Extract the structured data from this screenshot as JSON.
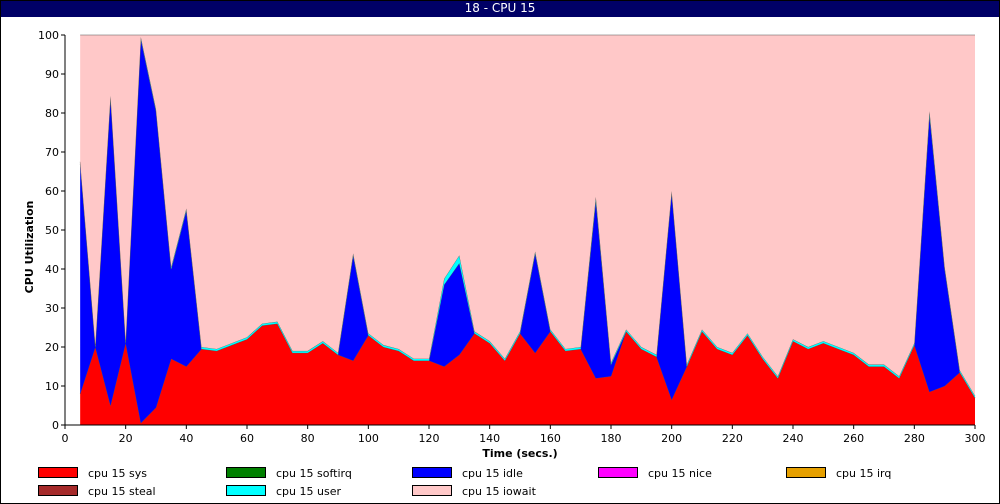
{
  "window_title": "18 - CPU 15",
  "chart_data": {
    "type": "area",
    "stacked": true,
    "xlabel": "Time (secs.)",
    "ylabel": "CPU Utilization",
    "xlim": [
      0,
      300
    ],
    "ylim": [
      0,
      100
    ],
    "x_ticks": [
      0,
      20,
      40,
      60,
      80,
      100,
      120,
      140,
      160,
      180,
      200,
      220,
      240,
      260,
      280,
      300
    ],
    "y_ticks": [
      0,
      10,
      20,
      30,
      40,
      50,
      60,
      70,
      80,
      90,
      100
    ],
    "grid": false,
    "legend_position": "bottom",
    "x": [
      5,
      10,
      15,
      20,
      25,
      30,
      35,
      40,
      45,
      50,
      55,
      60,
      65,
      70,
      75,
      80,
      85,
      90,
      95,
      100,
      105,
      110,
      115,
      120,
      125,
      130,
      135,
      140,
      145,
      150,
      155,
      160,
      165,
      170,
      175,
      180,
      185,
      190,
      195,
      200,
      205,
      210,
      215,
      220,
      225,
      230,
      235,
      240,
      245,
      250,
      255,
      260,
      265,
      270,
      275,
      280,
      285,
      290,
      295,
      300
    ],
    "series": [
      {
        "name": "cpu 15 sys",
        "color": "#ff0000",
        "values": [
          8,
          20,
          5,
          21,
          0.5,
          4.5,
          17,
          15,
          19.5,
          19,
          20.5,
          22,
          25.5,
          26,
          18.5,
          18.5,
          21,
          18,
          16.5,
          23,
          20,
          19,
          16.5,
          16.5,
          15,
          18,
          23.5,
          21,
          16.5,
          23.5,
          18.5,
          24,
          19,
          19.5,
          12,
          12.5,
          24,
          19.5,
          17.5,
          6.5,
          15,
          24,
          19.5,
          18,
          23,
          17,
          12,
          21.5,
          19.5,
          21,
          19.5,
          18,
          15,
          15,
          12,
          20.5,
          8.5,
          10,
          13.5,
          7
        ]
      },
      {
        "name": "cpu 15 softirq",
        "color": "#008000",
        "values": [
          0,
          0,
          0,
          0,
          0,
          0,
          0,
          0,
          0,
          0,
          0,
          0,
          0,
          0,
          0,
          0,
          0,
          0,
          0,
          0,
          0,
          0,
          0,
          0,
          0,
          0,
          0,
          0,
          0,
          0,
          0,
          0,
          0,
          0,
          0,
          0,
          0,
          0,
          0,
          0,
          0,
          0,
          0,
          0,
          0,
          0,
          0,
          0,
          0,
          0,
          0,
          0,
          0,
          0,
          0,
          0,
          0,
          0,
          0,
          0
        ]
      },
      {
        "name": "cpu 15 idle",
        "color": "#0000ff",
        "values": [
          59,
          0,
          79,
          0,
          98.5,
          76,
          23,
          40,
          0,
          0,
          0,
          0,
          0,
          0,
          0,
          0,
          0,
          0,
          27,
          0,
          0,
          0,
          0,
          0,
          21,
          23.5,
          0,
          0,
          0,
          0,
          25.5,
          0,
          0,
          0,
          45.5,
          3,
          0,
          0,
          0,
          53,
          0,
          0,
          0,
          0,
          0,
          0,
          0,
          0,
          0,
          0,
          0,
          0,
          0,
          0,
          0,
          0,
          71,
          30,
          0,
          0
        ]
      },
      {
        "name": "cpu 15 nice",
        "color": "#ff00ff",
        "values": [
          0,
          0,
          0,
          0,
          0,
          0,
          0,
          0,
          0,
          0,
          0,
          0,
          0,
          0,
          0,
          0,
          0,
          0,
          0,
          0,
          0,
          0,
          0,
          0,
          0,
          0,
          0,
          0,
          0,
          0,
          0,
          0,
          0,
          0,
          0,
          0,
          0,
          0,
          0,
          0,
          0,
          0,
          0,
          0,
          0,
          0,
          0,
          0,
          0,
          0,
          0,
          0,
          0,
          0,
          0,
          0,
          0,
          0,
          0,
          0
        ]
      },
      {
        "name": "cpu 15 irq",
        "color": "#e6a000",
        "values": [
          0,
          0,
          0,
          0,
          0,
          0,
          0,
          0,
          0,
          0,
          0,
          0,
          0,
          0,
          0,
          0,
          0,
          0,
          0,
          0,
          0,
          0,
          0,
          0,
          0,
          0,
          0,
          0,
          0,
          0,
          0,
          0,
          0,
          0,
          0,
          0,
          0,
          0,
          0,
          0,
          0,
          0,
          0,
          0,
          0,
          0,
          0,
          0,
          0,
          0,
          0,
          0,
          0,
          0,
          0,
          0,
          0,
          0,
          0,
          0
        ]
      },
      {
        "name": "cpu 15 steal",
        "color": "#a52a2a",
        "values": [
          0,
          0,
          0,
          0,
          0,
          0,
          0,
          0,
          0,
          0,
          0,
          0,
          0,
          0,
          0,
          0,
          0,
          0,
          0,
          0,
          0,
          0,
          0,
          0,
          0,
          0,
          0,
          0,
          0,
          0,
          0,
          0,
          0,
          0,
          0,
          0,
          0,
          0,
          0,
          0,
          0,
          0,
          0,
          0,
          0,
          0,
          0,
          0,
          0,
          0,
          0,
          0,
          0,
          0,
          0,
          0,
          0,
          0,
          0,
          0
        ]
      },
      {
        "name": "cpu 15 user",
        "color": "#00ffff",
        "values": [
          0.5,
          0.5,
          0.5,
          0.5,
          0.5,
          0.5,
          0.5,
          0.5,
          0.5,
          0.5,
          0.5,
          0.5,
          0.5,
          0.5,
          0.5,
          0.5,
          0.5,
          0.5,
          0.5,
          0.5,
          0.5,
          0.5,
          0.5,
          0.5,
          1.5,
          2,
          0.5,
          0.5,
          0.5,
          0.5,
          0.5,
          0.5,
          0.5,
          0.5,
          1,
          0.5,
          0.5,
          0.5,
          0.5,
          0.5,
          0.5,
          0.5,
          0.5,
          0.5,
          0.5,
          0.5,
          0.5,
          0.5,
          0.5,
          0.5,
          0.5,
          0.5,
          0.5,
          0.5,
          0.5,
          0.5,
          1,
          0.5,
          0.5,
          0.5
        ]
      },
      {
        "name": "cpu 15 iowait",
        "color": "#ffc8c8",
        "values": [
          32.5,
          79.5,
          15.5,
          78.5,
          0.5,
          19,
          59.5,
          44.5,
          80,
          80.5,
          79,
          77.5,
          74,
          73.5,
          81,
          81,
          78.5,
          81.5,
          56,
          76.5,
          79.5,
          80.5,
          83,
          83,
          62.5,
          56.5,
          76,
          78.5,
          83,
          76,
          55.5,
          75.5,
          80.5,
          80,
          41.5,
          84,
          75.5,
          80,
          82,
          40,
          84.5,
          75.5,
          80,
          81.5,
          76.5,
          82.5,
          87.5,
          78,
          80,
          78.5,
          80,
          81.5,
          84.5,
          84.5,
          87.5,
          79,
          19.5,
          59.5,
          86,
          92.5
        ]
      }
    ]
  }
}
